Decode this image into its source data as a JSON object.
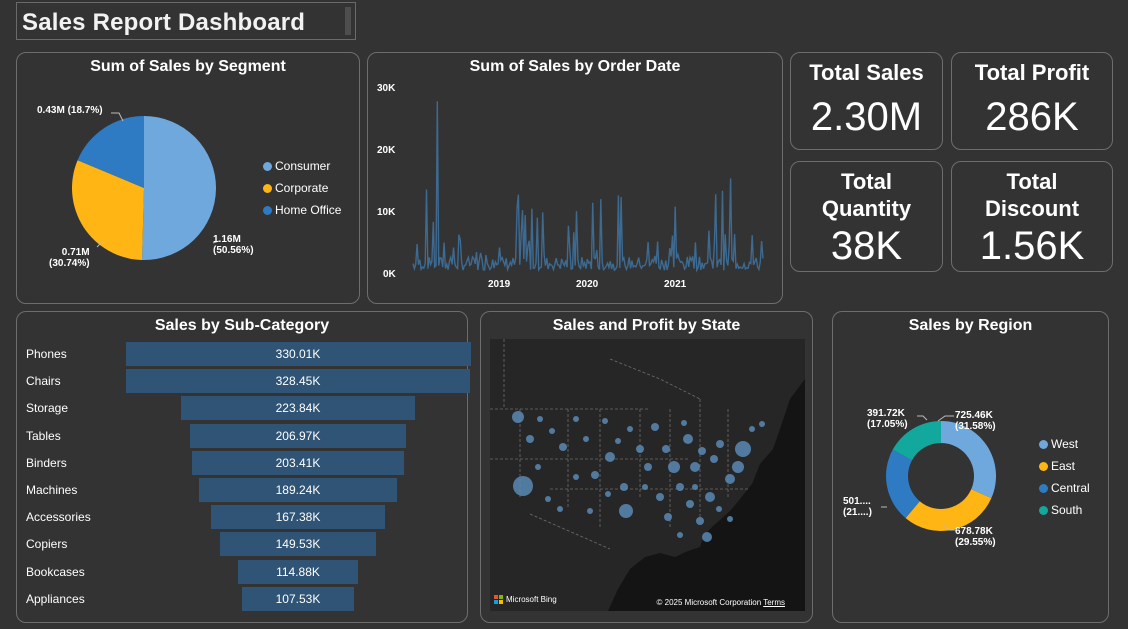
{
  "title": "Sales Report Dashboard",
  "colors": {
    "consumer": "#6fa8dc",
    "corporate": "#ffb513",
    "home_office": "#2e7bc4",
    "south": "#13a89e",
    "bar": "#2f5475",
    "line": "#3d6a91",
    "bubble": "#5a89b5"
  },
  "kpis": {
    "total_sales": {
      "label": "Total Sales",
      "value": "2.30M"
    },
    "total_profit": {
      "label": "Total Profit",
      "value": "286K"
    },
    "total_quantity": {
      "label1": "Total",
      "label2": "Quantity",
      "value": "38K"
    },
    "total_discount": {
      "label1": "Total",
      "label2": "Discount",
      "value": "1.56K"
    }
  },
  "map": {
    "title": "Sales and Profit by State",
    "bing_label": "Microsoft Bing",
    "copyright": "© 2025 Microsoft Corporation",
    "terms": "Terms"
  },
  "chart_data": [
    {
      "type": "pie",
      "title": "Sum of Sales by Segment",
      "labels": [
        "Consumer",
        "Corporate",
        "Home Office"
      ],
      "values": [
        1.16,
        0.71,
        0.43
      ],
      "percents": [
        50.56,
        30.74,
        18.7
      ],
      "data_labels": [
        "1.16M",
        "0.71M",
        "0.43M"
      ],
      "data_label_pcts": [
        "(50.56%)",
        "(30.74%)",
        "(18.7%)"
      ],
      "legend_position": "right"
    },
    {
      "type": "line",
      "title": "Sum of Sales by Order Date",
      "y_ticks": [
        "30K",
        "20K",
        "10K",
        "0K"
      ],
      "x_ticks": [
        "2019",
        "2020",
        "2021"
      ],
      "ylim": [
        0,
        30000
      ],
      "series_note": "daily sales, spikes up to about 28000"
    },
    {
      "type": "bar",
      "orientation": "horizontal-funnel",
      "title": "Sales by Sub-Category",
      "categories": [
        "Phones",
        "Chairs",
        "Storage",
        "Tables",
        "Binders",
        "Machines",
        "Accessories",
        "Copiers",
        "Bookcases",
        "Appliances"
      ],
      "values": [
        330.01,
        328.45,
        223.84,
        206.97,
        203.41,
        189.24,
        167.38,
        149.53,
        114.88,
        107.53
      ],
      "data_labels": [
        "330.01K",
        "328.45K",
        "223.84K",
        "206.97K",
        "203.41K",
        "189.24K",
        "167.38K",
        "149.53K",
        "114.88K",
        "107.53K"
      ]
    },
    {
      "type": "pie",
      "variant": "donut",
      "title": "Sales by Region",
      "labels": [
        "West",
        "East",
        "Central",
        "South"
      ],
      "values": [
        725.46,
        678.78,
        501,
        391.72
      ],
      "percents": [
        31.58,
        29.55,
        21,
        17.05
      ],
      "data_labels": [
        "725.46K",
        "678.78K",
        "501....",
        "391.72K"
      ],
      "data_label_pcts": [
        "(31.58%)",
        "(29.55%)",
        "(21....)",
        "(17.05%)"
      ],
      "legend_position": "right"
    }
  ]
}
